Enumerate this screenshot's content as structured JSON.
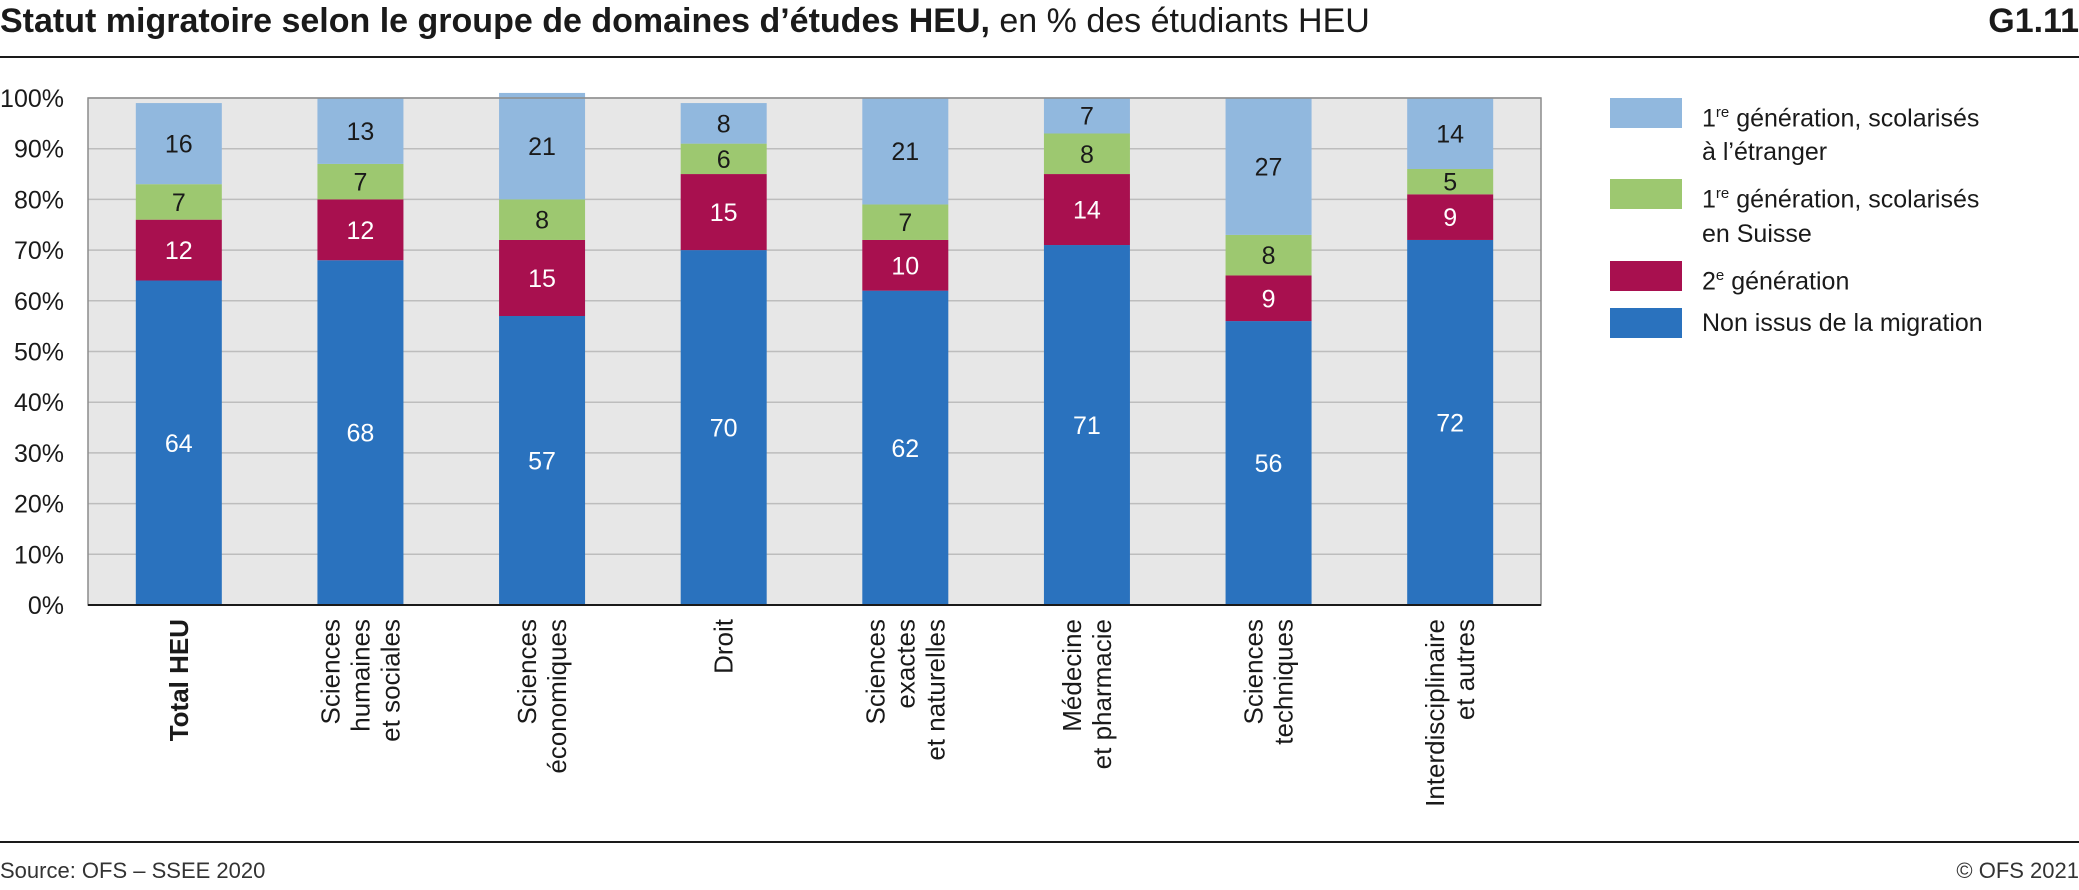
{
  "header": {
    "title_bold": "Statut migratoire selon le groupe de domaines d’études HEU,",
    "title_rest": " en % des étudiants HEU",
    "figure_id": "G1.11"
  },
  "footer": {
    "source": "Source: OFS – SSEE 2020",
    "copyright": "© OFS 2021"
  },
  "legend": {
    "items": [
      {
        "sup_num": "1",
        "sup": "re",
        "text1": " génération, scolarisés",
        "text2": "à l’étranger"
      },
      {
        "sup_num": "1",
        "sup": "re",
        "text1": " génération, scolarisés",
        "text2": "en Suisse"
      },
      {
        "sup_num": "2",
        "sup": "e",
        "text1": " génération",
        "text2": ""
      },
      {
        "sup_num": "",
        "sup": "",
        "text1": "Non issus de la migration",
        "text2": ""
      }
    ]
  },
  "colors": {
    "non_migrant": "#2a72be",
    "second_gen": "#a8104f",
    "first_gen_ch": "#9dc870",
    "first_gen_abroad": "#91b8de",
    "plot_bg": "#e7e7e7",
    "grid": "#bdbdbd"
  },
  "chart_data": {
    "type": "bar",
    "stacked": true,
    "categories": [
      [
        "Total HEU"
      ],
      [
        "Sciences",
        "humaines",
        "et sociales"
      ],
      [
        "Sciences",
        "économiques"
      ],
      [
        "Droit"
      ],
      [
        "Sciences",
        "exactes",
        "et naturelles"
      ],
      [
        "Médecine",
        "et pharmacie"
      ],
      [
        "Sciences",
        "techniques"
      ],
      [
        "Interdisciplinaire",
        "et autres"
      ]
    ],
    "bold_category_index": 0,
    "series": [
      {
        "name": "Non issus de la migration",
        "values": [
          64,
          68,
          57,
          70,
          62,
          71,
          56,
          72
        ]
      },
      {
        "name": "2e génération",
        "values": [
          12,
          12,
          15,
          15,
          10,
          14,
          9,
          9
        ]
      },
      {
        "name": "1re génération, scolarisés en Suisse",
        "values": [
          7,
          7,
          8,
          6,
          7,
          8,
          8,
          5
        ]
      },
      {
        "name": "1re génération, scolarisés à l’étranger",
        "values": [
          16,
          13,
          21,
          8,
          21,
          7,
          27,
          14
        ]
      }
    ],
    "y_ticks": [
      "0%",
      "10%",
      "20%",
      "30%",
      "40%",
      "50%",
      "60%",
      "70%",
      "80%",
      "90%",
      "100%"
    ],
    "ylim": [
      0,
      100
    ],
    "grid": true,
    "legend_position": "right"
  }
}
